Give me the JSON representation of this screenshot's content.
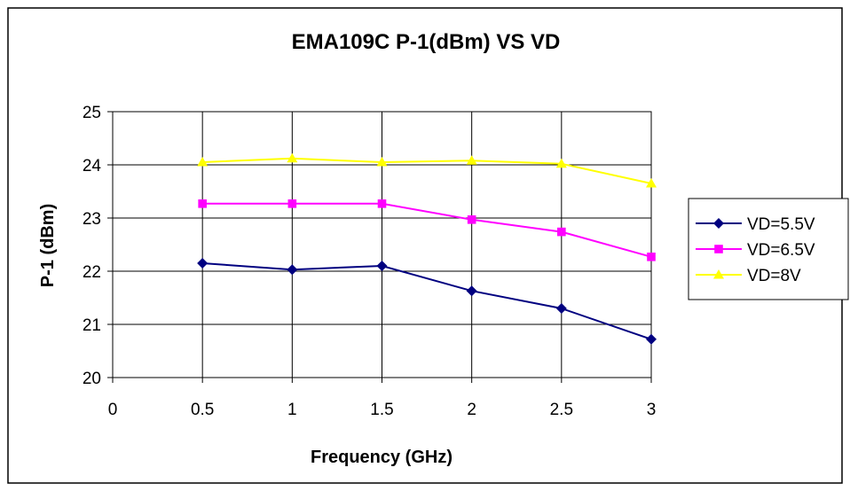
{
  "chart_data": {
    "type": "line",
    "title": "EMA109C P-1(dBm) VS VD",
    "xlabel": "Frequency (GHz)",
    "ylabel": "P-1 (dBm)",
    "xlim": [
      0,
      3
    ],
    "ylim": [
      20,
      25
    ],
    "x_ticks": [
      "0",
      "0.5",
      "1",
      "1.5",
      "2",
      "2.5",
      "3"
    ],
    "y_ticks": [
      "20",
      "21",
      "22",
      "23",
      "24",
      "25"
    ],
    "grid": true,
    "legend_position": "right",
    "x": [
      0.5,
      1,
      1.5,
      2,
      2.5,
      3
    ],
    "series": [
      {
        "name": "VD=5.5V",
        "color": "#000080",
        "marker": "diamond",
        "values": [
          22.15,
          22.03,
          22.1,
          21.63,
          21.3,
          20.72
        ]
      },
      {
        "name": "VD=6.5V",
        "color": "#FF00FF",
        "marker": "square",
        "values": [
          23.27,
          23.27,
          23.27,
          22.97,
          22.74,
          22.27
        ]
      },
      {
        "name": "VD=8V",
        "color": "#FFFF00",
        "marker": "triangle",
        "values": [
          24.05,
          24.12,
          24.05,
          24.08,
          24.02,
          23.65
        ]
      }
    ]
  }
}
